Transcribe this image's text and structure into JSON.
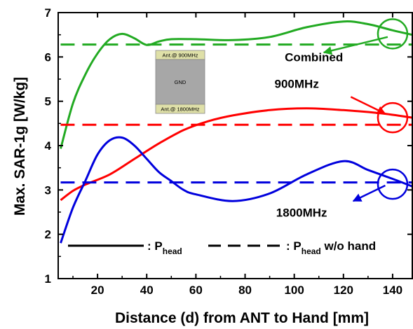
{
  "chart_data": {
    "type": "line",
    "xlabel": "Distance (d) from ANT to Hand [mm]",
    "ylabel": "Max. SAR-1g [W/kg]",
    "xlim": [
      4,
      148
    ],
    "ylim": [
      1,
      7
    ],
    "xticks": [
      "20",
      "40",
      "60",
      "80",
      "100",
      "120",
      "140"
    ],
    "yticks": [
      "1",
      "2",
      "3",
      "4",
      "5",
      "6",
      "7"
    ],
    "grid": false,
    "series": [
      {
        "name": "Combined",
        "color": "#22aa22",
        "style": "solid",
        "points": [
          [
            5,
            3.93
          ],
          [
            10,
            4.95
          ],
          [
            15,
            5.6
          ],
          [
            20,
            6.08
          ],
          [
            25,
            6.4
          ],
          [
            30,
            6.52
          ],
          [
            35,
            6.42
          ],
          [
            40,
            6.27
          ],
          [
            45,
            6.35
          ],
          [
            50,
            6.4
          ],
          [
            60,
            6.4
          ],
          [
            75,
            6.38
          ],
          [
            90,
            6.45
          ],
          [
            105,
            6.67
          ],
          [
            120,
            6.8
          ],
          [
            130,
            6.74
          ],
          [
            140,
            6.6
          ],
          [
            148,
            6.5
          ]
        ]
      },
      {
        "name": "900MHz",
        "color": "#ff0000",
        "style": "solid",
        "points": [
          [
            5,
            2.77
          ],
          [
            10,
            2.98
          ],
          [
            15,
            3.12
          ],
          [
            25,
            3.35
          ],
          [
            35,
            3.7
          ],
          [
            45,
            4.05
          ],
          [
            55,
            4.35
          ],
          [
            65,
            4.55
          ],
          [
            75,
            4.68
          ],
          [
            90,
            4.8
          ],
          [
            105,
            4.84
          ],
          [
            120,
            4.8
          ],
          [
            135,
            4.73
          ],
          [
            148,
            4.63
          ]
        ]
      },
      {
        "name": "1800MHz",
        "color": "#0000dd",
        "style": "solid",
        "points": [
          [
            5,
            1.8
          ],
          [
            10,
            2.6
          ],
          [
            15,
            3.2
          ],
          [
            20,
            3.8
          ],
          [
            25,
            4.12
          ],
          [
            30,
            4.18
          ],
          [
            35,
            4.0
          ],
          [
            40,
            3.7
          ],
          [
            45,
            3.4
          ],
          [
            50,
            3.2
          ],
          [
            55,
            3.0
          ],
          [
            60,
            2.9
          ],
          [
            75,
            2.75
          ],
          [
            90,
            2.92
          ],
          [
            105,
            3.35
          ],
          [
            120,
            3.65
          ],
          [
            130,
            3.45
          ],
          [
            140,
            3.25
          ],
          [
            148,
            3.08
          ]
        ]
      },
      {
        "name": "Combined w/o hand",
        "color": "#22aa22",
        "style": "dashed",
        "points": [
          [
            5,
            6.28
          ],
          [
            148,
            6.28
          ]
        ]
      },
      {
        "name": "900MHz w/o hand",
        "color": "#ff0000",
        "style": "dashed",
        "points": [
          [
            5,
            4.47
          ],
          [
            148,
            4.47
          ]
        ]
      },
      {
        "name": "1800MHz w/o hand",
        "color": "#0000dd",
        "style": "dashed",
        "points": [
          [
            5,
            3.17
          ],
          [
            148,
            3.17
          ]
        ]
      }
    ],
    "annotations": [
      {
        "key": "combined",
        "text": "Combined",
        "color": "#22aa22",
        "circle_at": [
          140,
          6.52
        ],
        "label_at": [
          108,
          5.9
        ],
        "arrow_from": [
          138,
          6.45
        ],
        "arrow_to": [
          112,
          6.1
        ]
      },
      {
        "key": "900",
        "text": "900MHz",
        "color": "#ff0000",
        "circle_at": [
          140,
          4.63
        ],
        "label_at": [
          101,
          5.3
        ],
        "arrow_from": [
          123,
          5.1
        ],
        "arrow_to": [
          137,
          4.72
        ]
      },
      {
        "key": "1800",
        "text": "1800MHz",
        "color": "#0000dd",
        "circle_at": [
          140,
          3.13
        ],
        "label_at": [
          103,
          2.4
        ],
        "arrow_from": [
          137,
          3.1
        ],
        "arrow_to": [
          124,
          2.75
        ]
      }
    ],
    "inset": {
      "top_label": "Ant.@ 900MHz",
      "center_label": "GND",
      "bottom_label": "Ant.@ 1800MHz"
    },
    "legend": {
      "solid_label_pre": ": P",
      "solid_label_sub": "head",
      "dashed_label_pre": ": P",
      "dashed_label_sub": "head",
      "dashed_label_post": " w/o hand"
    }
  }
}
